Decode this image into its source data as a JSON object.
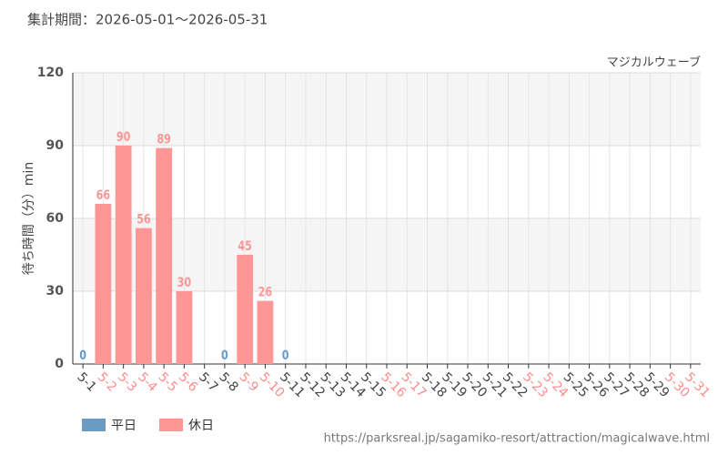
{
  "chart_data": {
    "type": "bar",
    "title": "集計期間：2026-05-01～2026-05-31",
    "subtitle": "マジカルウェーブ",
    "y_label": "待ち時間（分）min",
    "source": "https://parksreal.jp/sagamiko-resort/attraction/magicalwave.html",
    "categories": [
      "5-1",
      "5-2",
      "5-3",
      "5-4",
      "5-5",
      "5-6",
      "5-7",
      "5-8",
      "5-9",
      "5-10",
      "5-11",
      "5-12",
      "5-13",
      "5-14",
      "5-15",
      "5-16",
      "5-17",
      "5-18",
      "5-19",
      "5-20",
      "5-21",
      "5-22",
      "5-23",
      "5-24",
      "5-25",
      "5-26",
      "5-27",
      "5-28",
      "5-29",
      "5-30",
      "5-31"
    ],
    "category_colors": [
      "#444444",
      "#ff8c8c",
      "#ff8c8c",
      "#ff8c8c",
      "#ff8c8c",
      "#ff8c8c",
      "#444444",
      "#444444",
      "#ff8c8c",
      "#ff8c8c",
      "#444444",
      "#444444",
      "#444444",
      "#444444",
      "#444444",
      "#ff8c8c",
      "#ff8c8c",
      "#444444",
      "#444444",
      "#444444",
      "#444444",
      "#444444",
      "#ff8c8c",
      "#ff8c8c",
      "#444444",
      "#444444",
      "#444444",
      "#444444",
      "#444444",
      "#ff8c8c",
      "#ff8c8c"
    ],
    "series": [
      {
        "name": "平日",
        "color": "#6b9bc3",
        "values": [
          0,
          null,
          null,
          null,
          null,
          null,
          null,
          0,
          null,
          null,
          0,
          null,
          null,
          null,
          null,
          null,
          null,
          null,
          null,
          null,
          null,
          null,
          null,
          null,
          null,
          null,
          null,
          null,
          null,
          null,
          null
        ]
      },
      {
        "name": "休日",
        "color": "#ff9696",
        "values": [
          null,
          66,
          90,
          56,
          89,
          30,
          null,
          null,
          45,
          26,
          null,
          null,
          null,
          null,
          null,
          null,
          null,
          null,
          null,
          null,
          null,
          null,
          null,
          null,
          null,
          null,
          null,
          null,
          null,
          null,
          null
        ]
      }
    ],
    "ylim": [
      0,
      120
    ],
    "yticks": [
      0,
      30,
      60,
      90,
      120
    ],
    "grid": true
  }
}
